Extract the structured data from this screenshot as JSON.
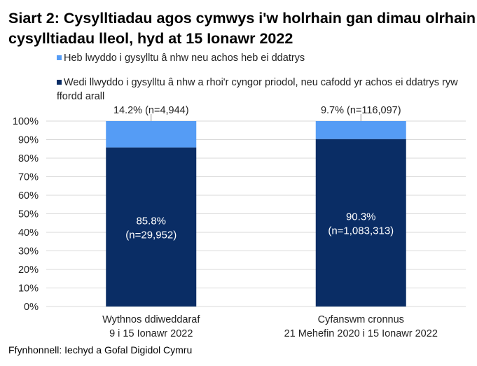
{
  "chart_data": {
    "type": "bar",
    "stacked": true,
    "title": "Siart 2: Cysylltiadau agos cymwys i'w holrhain gan dimau olrhain cysylltiadau lleol, hyd at 15 Ionawr 2022",
    "categories": [
      [
        "Wythnos ddiweddaraf",
        "9 i 15 Ionawr 2022"
      ],
      [
        "Cyfanswm cronnus",
        "21 Mehefin 2020 i 15 Ionawr 2022"
      ]
    ],
    "series": [
      {
        "name": "Wedi llwyddo i gysylltu â nhw a rhoi'r cyngor priodol, neu cafodd yr achos ei ddatrys ryw ffordd arall",
        "values": [
          85.8,
          90.3
        ],
        "labels": [
          [
            "85.8%",
            "(n=29,952)"
          ],
          [
            "90.3%",
            "(n=1,083,313)"
          ]
        ],
        "color": "#0a2d65"
      },
      {
        "name": "Heb lwyddo i gysylltu â nhw neu achos heb ei ddatrys",
        "values": [
          14.2,
          9.7
        ],
        "labels": [
          [
            "14.2% (n=4,944)"
          ],
          [
            "9.7% (n=116,097)"
          ]
        ],
        "color": "#559cf5"
      }
    ],
    "yticks": [
      "0%",
      "10%",
      "20%",
      "30%",
      "40%",
      "50%",
      "60%",
      "70%",
      "80%",
      "90%",
      "100%"
    ],
    "ylim": [
      0,
      100
    ],
    "grid": true,
    "legend_placement": "top"
  },
  "source": "Ffynhonnell: Iechyd a Gofal Digidol Cymru"
}
